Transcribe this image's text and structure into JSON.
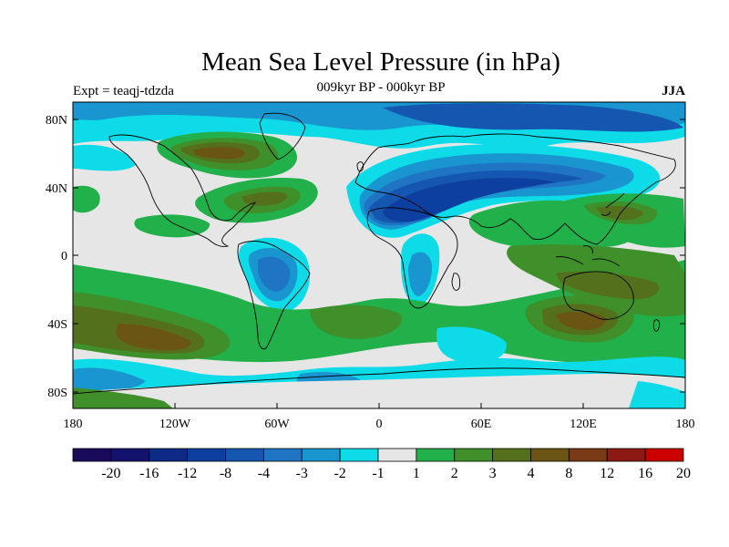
{
  "header": {
    "title": "Mean Sea Level Pressure (in hPa)",
    "experiment": "Expt = teaqj-tdzda",
    "subtitle": "009kyr BP - 000kyr BP",
    "season": "JJA"
  },
  "axes": {
    "lat_labels": [
      "80N",
      "40N",
      "0",
      "40S",
      "80S"
    ],
    "lon_labels": [
      "180",
      "120W",
      "60W",
      "0",
      "60E",
      "120E",
      "180"
    ]
  },
  "colorbar": {
    "labels": [
      "-20",
      "-16",
      "-12",
      "-8",
      "-4",
      "-3",
      "-2",
      "-1",
      "1",
      "2",
      "3",
      "4",
      "8",
      "12",
      "16",
      "20"
    ],
    "colors": [
      "#1a0a5c",
      "#13136e",
      "#0d2a86",
      "#0d3fa0",
      "#1456b0",
      "#1f75c4",
      "#1996cf",
      "#0ddce8",
      "#e6e6e6",
      "#22b04a",
      "#3f8f2a",
      "#55701c",
      "#6b5515",
      "#7a3a15",
      "#8c1a12",
      "#cc0000"
    ]
  },
  "palette": {
    "land_outline": "#000000",
    "neutral": "#e6e6e6"
  }
}
